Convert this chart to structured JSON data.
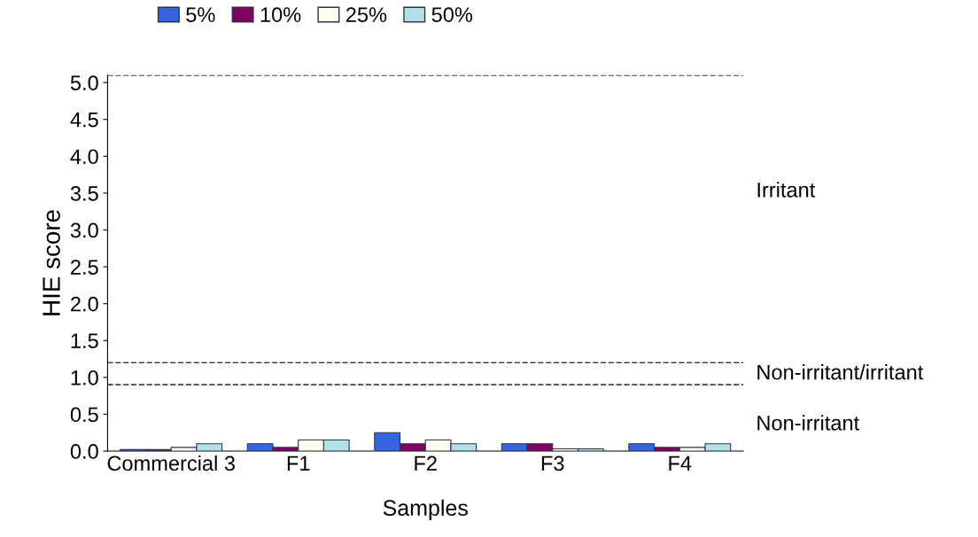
{
  "chart_data": {
    "type": "bar",
    "xlabel": "Samples",
    "ylabel": "HIE score",
    "categories": [
      "Commercial 3",
      "F1",
      "F2",
      "F3",
      "F4"
    ],
    "series": [
      {
        "name": "5%",
        "color": "#3366e0",
        "values": [
          0.02,
          0.1,
          0.25,
          0.1,
          0.1
        ]
      },
      {
        "name": "10%",
        "color": "#800060",
        "values": [
          0.02,
          0.05,
          0.1,
          0.1,
          0.05
        ]
      },
      {
        "name": "25%",
        "color": "#fffff0",
        "values": [
          0.05,
          0.15,
          0.15,
          0.03,
          0.05
        ]
      },
      {
        "name": "50%",
        "color": "#b0e0e8",
        "values": [
          0.1,
          0.15,
          0.1,
          0.03,
          0.1
        ]
      }
    ],
    "ylim": [
      0,
      5.1
    ],
    "yticks": [
      {
        "value": 0,
        "label": "0.0"
      },
      0.5,
      {
        "value": 1,
        "label": "1.0"
      },
      1.5,
      {
        "value": 2,
        "label": "2.0"
      },
      2.5,
      {
        "value": 3,
        "label": "3.0"
      },
      3.5,
      {
        "value": 4,
        "label": "4.0"
      },
      4.5,
      {
        "value": 5,
        "label": "5.0"
      }
    ],
    "ref_lines": [
      {
        "axis": "y",
        "value": 5.1,
        "color": "#404060",
        "line_style": "dashed"
      },
      {
        "axis": "y",
        "value": 1.2,
        "color": "#404060",
        "line_style": "dashed"
      },
      {
        "axis": "y",
        "value": 0.9,
        "color": "#404060",
        "line_style": "dashed"
      }
    ],
    "annotations": [
      "Irritant",
      "Non-irritant/irritant",
      "Non-irritant"
    ],
    "legend": "top",
    "grid": false
  }
}
